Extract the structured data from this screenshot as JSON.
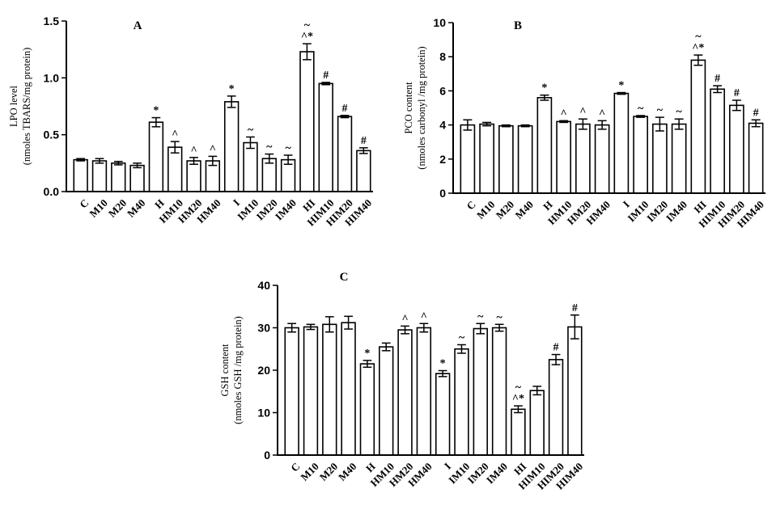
{
  "chart_data": [
    {
      "type": "bar",
      "title": "A",
      "ylabel": [
        "LPO level",
        "(nmoles TBARS/mg protein)"
      ],
      "ylim": [
        0,
        1.5
      ],
      "yticks": [
        0.0,
        0.5,
        1.0,
        1.5
      ],
      "ytick_labels": [
        "0.0",
        "0.5",
        "1.0",
        "1.5"
      ],
      "categories": [
        "C",
        "M10",
        "M20",
        "M40",
        "H",
        "HM10",
        "HM20",
        "HM40",
        "I",
        "IM10",
        "IM20",
        "IM40",
        "HI",
        "HIM10",
        "HIM20",
        "HIM40"
      ],
      "values": [
        0.28,
        0.27,
        0.25,
        0.23,
        0.61,
        0.39,
        0.27,
        0.27,
        0.79,
        0.43,
        0.29,
        0.28,
        1.23,
        0.95,
        0.66,
        0.36
      ],
      "errors": [
        0.01,
        0.02,
        0.015,
        0.02,
        0.04,
        0.05,
        0.03,
        0.04,
        0.05,
        0.05,
        0.04,
        0.04,
        0.07,
        0.01,
        0.01,
        0.025
      ],
      "annotations": [
        "",
        "",
        "",
        "",
        "*",
        "^",
        "^",
        "^",
        "*",
        "~",
        "~",
        "~",
        "~\n^*",
        "#",
        "#",
        "#"
      ]
    },
    {
      "type": "bar",
      "title": "B",
      "ylabel": [
        "PCO content",
        "(nmoles carbonyl /mg protein)"
      ],
      "ylim": [
        0,
        10
      ],
      "yticks": [
        0,
        2,
        4,
        6,
        8,
        10
      ],
      "ytick_labels": [
        "0",
        "2",
        "4",
        "6",
        "8",
        "10"
      ],
      "categories": [
        "C",
        "M10",
        "M20",
        "M40",
        "H",
        "HM10",
        "HM20",
        "HM40",
        "I",
        "IM10",
        "IM20",
        "IM40",
        "HI",
        "HIM10",
        "HIM20",
        "HIM40"
      ],
      "values": [
        4.0,
        4.05,
        3.95,
        3.95,
        5.6,
        4.2,
        4.05,
        4.0,
        5.85,
        4.5,
        4.05,
        4.05,
        7.8,
        6.1,
        5.15,
        4.1
      ],
      "errors": [
        0.3,
        0.1,
        0.05,
        0.05,
        0.15,
        0.05,
        0.3,
        0.25,
        0.05,
        0.05,
        0.4,
        0.3,
        0.3,
        0.2,
        0.3,
        0.2
      ],
      "annotations": [
        "",
        "",
        "",
        "",
        "*",
        "^",
        "^",
        "^",
        "*",
        "~",
        "~",
        "~",
        "~\n^*",
        "#",
        "#",
        "#"
      ]
    },
    {
      "type": "bar",
      "title": "C",
      "ylabel": [
        "GSH content",
        "(nmoles GSH /mg protein)"
      ],
      "ylim": [
        0,
        40
      ],
      "yticks": [
        0,
        10,
        20,
        30,
        40
      ],
      "ytick_labels": [
        "0",
        "10",
        "20",
        "30",
        "40"
      ],
      "categories": [
        "C",
        "M10",
        "M20",
        "M40",
        "H",
        "HM10",
        "HM20",
        "HM40",
        "I",
        "IM10",
        "IM20",
        "IM40",
        "HI",
        "HIM10",
        "HIM20",
        "HIM40"
      ],
      "values": [
        30.0,
        30.2,
        30.8,
        31.2,
        21.5,
        25.5,
        29.5,
        30.0,
        19.2,
        25.0,
        29.8,
        30.0,
        10.8,
        15.2,
        22.5,
        30.2
      ],
      "errors": [
        1.0,
        0.6,
        1.8,
        1.5,
        0.8,
        0.9,
        0.9,
        1.0,
        0.7,
        1.0,
        1.2,
        0.8,
        0.8,
        1.0,
        1.2,
        2.8
      ],
      "annotations": [
        "",
        "",
        "",
        "",
        "*",
        "",
        "^",
        "^",
        "*",
        "~",
        "~",
        "~",
        "~\n^*",
        "",
        "#",
        "#"
      ]
    }
  ]
}
